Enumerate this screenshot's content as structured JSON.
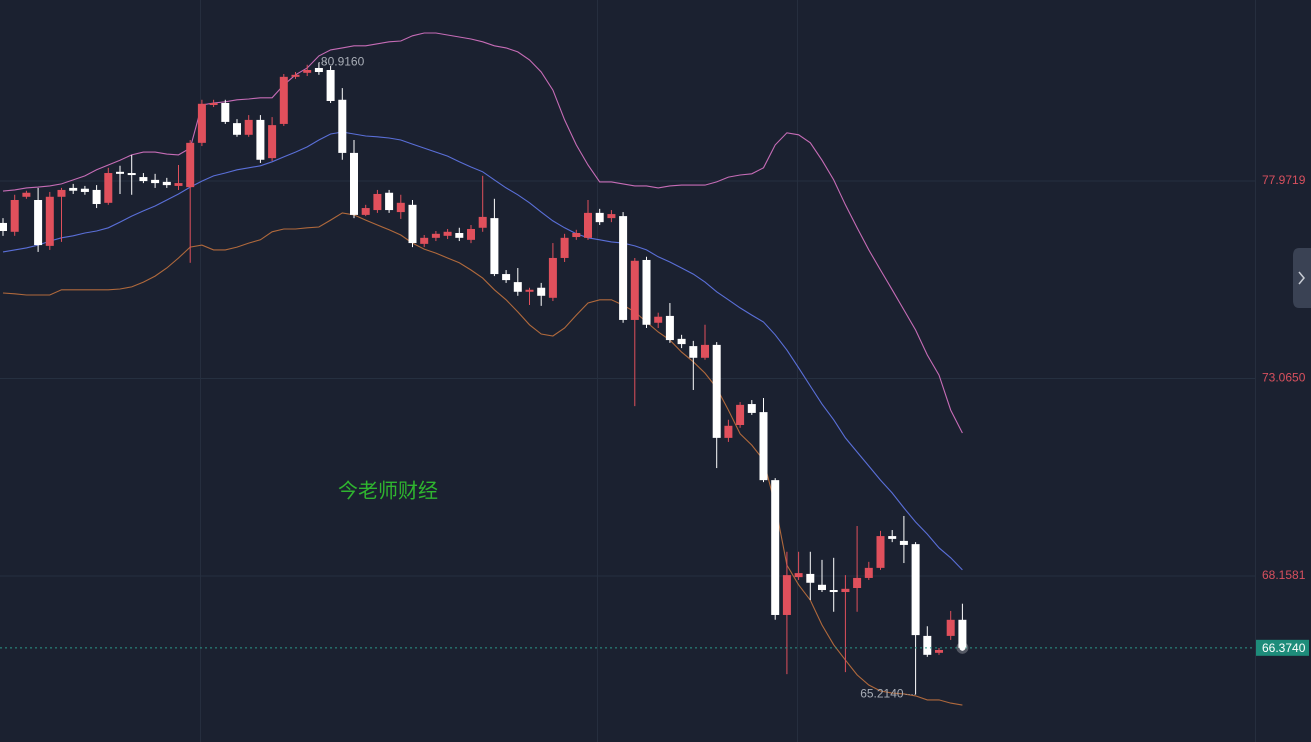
{
  "chart_data": {
    "type": "candlestick",
    "watermark": "今老师财经",
    "categories": [
      null,
      null,
      null,
      null,
      null,
      null,
      null,
      null,
      null,
      null,
      null,
      null,
      null,
      null,
      null,
      null,
      null,
      null,
      null,
      null,
      null,
      null,
      null,
      null,
      null,
      null,
      null,
      null,
      null,
      null,
      null,
      null,
      null,
      null,
      null,
      null,
      null,
      null,
      null,
      null,
      null,
      null,
      null,
      null,
      null,
      null,
      null,
      null,
      null,
      null,
      null,
      null,
      null,
      null,
      null,
      null,
      null,
      null,
      null,
      null,
      null,
      null,
      null,
      null,
      null,
      null,
      null,
      null,
      null,
      null,
      null,
      null,
      null,
      null,
      null,
      null,
      null,
      null,
      null,
      null,
      null,
      null,
      null
    ],
    "open": [
      76.93,
      76.71,
      77.58,
      77.5,
      76.36,
      77.58,
      77.8,
      77.78,
      77.75,
      77.43,
      78.2,
      78.17,
      78.07,
      78.0,
      77.95,
      77.85,
      77.82,
      78.92,
      79.86,
      79.91,
      79.41,
      79.12,
      79.49,
      78.54,
      79.39,
      80.56,
      80.66,
      80.78,
      80.73,
      79.99,
      78.67,
      77.13,
      77.25,
      77.68,
      77.2,
      77.38,
      76.41,
      76.56,
      76.61,
      76.68,
      76.51,
      76.81,
      77.05,
      75.66,
      75.46,
      75.22,
      75.32,
      75.07,
      76.06,
      76.58,
      76.56,
      77.18,
      77.05,
      77.1,
      74.52,
      76.01,
      74.45,
      74.62,
      74.05,
      73.87,
      73.58,
      73.9,
      71.59,
      71.91,
      72.43,
      72.23,
      70.54,
      67.19,
      68.13,
      68.21,
      67.94,
      67.81,
      67.76,
      67.86,
      68.11,
      68.36,
      69.15,
      69.03,
      68.95,
      66.67,
      66.25,
      66.67,
      67.07
    ],
    "high": [
      77.05,
      77.63,
      77.73,
      77.8,
      77.7,
      77.8,
      77.9,
      77.85,
      77.87,
      78.3,
      78.35,
      78.62,
      78.17,
      78.15,
      78.05,
      78.37,
      78.99,
      79.99,
      79.99,
      79.99,
      79.51,
      79.61,
      79.61,
      79.56,
      80.63,
      80.68,
      80.86,
      80.916,
      80.83,
      80.28,
      78.99,
      77.38,
      77.75,
      77.75,
      77.63,
      77.5,
      76.63,
      76.73,
      76.78,
      76.81,
      76.88,
      78.1,
      77.53,
      75.76,
      75.81,
      75.32,
      75.44,
      76.43,
      76.66,
      76.76,
      77.5,
      77.28,
      77.25,
      77.2,
      76.06,
      76.09,
      74.7,
      74.94,
      74.15,
      74.0,
      74.4,
      73.97,
      72.04,
      72.48,
      72.53,
      72.58,
      70.59,
      68.76,
      68.76,
      68.76,
      68.56,
      68.61,
      68.18,
      69.4,
      68.51,
      69.28,
      69.3,
      69.65,
      69.0,
      66.91,
      66.37,
      67.29,
      67.47
    ],
    "low": [
      76.61,
      76.61,
      77.53,
      76.21,
      76.26,
      76.46,
      77.65,
      77.63,
      77.3,
      77.38,
      77.65,
      77.63,
      77.92,
      77.8,
      77.8,
      77.75,
      75.94,
      78.84,
      79.81,
      79.39,
      79.07,
      79.07,
      78.42,
      78.47,
      79.34,
      80.51,
      80.58,
      80.61,
      79.91,
      78.5,
      77.05,
      77.1,
      77.18,
      77.18,
      77.03,
      76.33,
      76.33,
      76.48,
      76.53,
      76.48,
      76.43,
      76.71,
      75.61,
      75.44,
      75.12,
      74.89,
      74.87,
      74.99,
      75.96,
      76.51,
      76.51,
      76.88,
      76.95,
      74.45,
      72.38,
      74.32,
      74.32,
      73.95,
      73.82,
      72.78,
      73.53,
      70.84,
      71.49,
      71.84,
      72.16,
      70.49,
      67.07,
      65.72,
      68.06,
      67.56,
      67.76,
      67.27,
      65.77,
      67.27,
      68.06,
      68.31,
      69.0,
      68.48,
      65.214,
      66.15,
      66.2,
      66.57,
      66.35
    ],
    "close": [
      76.73,
      77.5,
      77.68,
      76.38,
      77.58,
      77.75,
      77.73,
      77.7,
      77.4,
      78.17,
      78.15,
      78.12,
      77.97,
      77.92,
      77.87,
      77.92,
      78.92,
      79.89,
      79.91,
      79.44,
      79.12,
      79.49,
      78.5,
      79.36,
      80.56,
      80.61,
      80.73,
      80.68,
      79.96,
      78.67,
      77.13,
      77.3,
      77.65,
      77.25,
      77.43,
      76.43,
      76.56,
      76.66,
      76.71,
      76.56,
      76.78,
      77.08,
      75.66,
      75.51,
      75.22,
      75.27,
      75.12,
      76.06,
      76.56,
      76.68,
      77.18,
      76.95,
      77.15,
      74.52,
      75.99,
      74.4,
      74.6,
      74.02,
      73.92,
      73.58,
      73.9,
      71.59,
      71.89,
      72.41,
      72.21,
      70.54,
      67.19,
      68.18,
      68.23,
      67.99,
      67.81,
      67.76,
      67.84,
      68.11,
      68.36,
      69.15,
      69.08,
      68.93,
      66.69,
      66.2,
      66.32,
      67.07,
      66.374
    ],
    "up_color": "#e0505c",
    "down_color": "#ffffff",
    "lines": [
      {
        "color": "#c66cb6",
        "values": [
          77.72,
          77.75,
          77.8,
          77.82,
          77.85,
          77.9,
          78.0,
          78.1,
          78.25,
          78.37,
          78.49,
          78.62,
          78.69,
          78.69,
          78.64,
          78.62,
          78.79,
          79.86,
          79.91,
          79.94,
          79.99,
          80.01,
          80.04,
          80.04,
          80.36,
          80.61,
          80.78,
          81.08,
          81.23,
          81.28,
          81.33,
          81.33,
          81.38,
          81.43,
          81.45,
          81.58,
          81.65,
          81.65,
          81.6,
          81.55,
          81.5,
          81.43,
          81.33,
          81.28,
          81.18,
          80.98,
          80.68,
          80.23,
          79.49,
          78.87,
          78.37,
          77.95,
          77.95,
          77.9,
          77.85,
          77.85,
          77.8,
          77.85,
          77.87,
          77.87,
          77.87,
          77.95,
          78.07,
          78.12,
          78.15,
          78.3,
          78.87,
          79.17,
          79.12,
          78.92,
          78.49,
          78.0,
          77.38,
          76.81,
          76.26,
          75.76,
          75.27,
          74.77,
          74.27,
          73.65,
          73.15,
          72.28,
          71.71
        ]
      },
      {
        "color": "#5a6fd8",
        "values": [
          76.21,
          76.26,
          76.31,
          76.38,
          76.48,
          76.56,
          76.61,
          76.68,
          76.73,
          76.81,
          76.95,
          77.1,
          77.23,
          77.35,
          77.5,
          77.65,
          77.82,
          77.97,
          78.1,
          78.17,
          78.25,
          78.3,
          78.35,
          78.45,
          78.57,
          78.69,
          78.82,
          78.99,
          79.14,
          79.19,
          79.14,
          79.09,
          79.07,
          79.04,
          78.99,
          78.89,
          78.79,
          78.69,
          78.59,
          78.45,
          78.32,
          78.2,
          78.0,
          77.8,
          77.63,
          77.43,
          77.2,
          76.98,
          76.81,
          76.66,
          76.56,
          76.51,
          76.46,
          76.43,
          76.36,
          76.26,
          76.09,
          75.96,
          75.81,
          75.66,
          75.46,
          75.22,
          75.02,
          74.82,
          74.64,
          74.47,
          74.15,
          73.77,
          73.33,
          72.88,
          72.43,
          72.04,
          71.59,
          71.24,
          70.89,
          70.54,
          70.22,
          69.85,
          69.5,
          69.2,
          68.86,
          68.61,
          68.31
        ]
      },
      {
        "color": "#b0693c",
        "values": [
          75.19,
          75.17,
          75.14,
          75.14,
          75.14,
          75.27,
          75.27,
          75.27,
          75.27,
          75.27,
          75.29,
          75.34,
          75.46,
          75.61,
          75.81,
          76.06,
          76.33,
          76.38,
          76.26,
          76.26,
          76.33,
          76.43,
          76.51,
          76.71,
          76.78,
          76.78,
          76.81,
          76.83,
          77.0,
          77.18,
          77.13,
          77.0,
          76.88,
          76.76,
          76.63,
          76.43,
          76.28,
          76.18,
          76.06,
          75.94,
          75.76,
          75.56,
          75.27,
          75.02,
          74.72,
          74.4,
          74.17,
          74.12,
          74.32,
          74.64,
          74.94,
          75.02,
          75.02,
          74.89,
          74.72,
          74.47,
          74.22,
          74.02,
          73.72,
          73.48,
          73.2,
          72.83,
          72.28,
          71.69,
          71.41,
          71.04,
          69.92,
          68.43,
          67.94,
          67.56,
          66.94,
          66.45,
          66.07,
          65.7,
          65.45,
          65.3,
          65.25,
          65.23,
          65.18,
          65.08,
          65.08,
          65.0,
          64.95
        ]
      }
    ],
    "ylim": [
      64.034,
      82.469
    ],
    "yticks": [
      77.9719,
      {
        "value": 73.065,
        "label": "73.0650"
      },
      68.1581
    ],
    "grid": true,
    "last_price": {
      "value": 66.374,
      "label": "66.3740"
    },
    "annotations": [
      {
        "value": 80.916,
        "label": "80.9160"
      },
      {
        "value": 65.214,
        "label": "65.2140"
      }
    ]
  }
}
